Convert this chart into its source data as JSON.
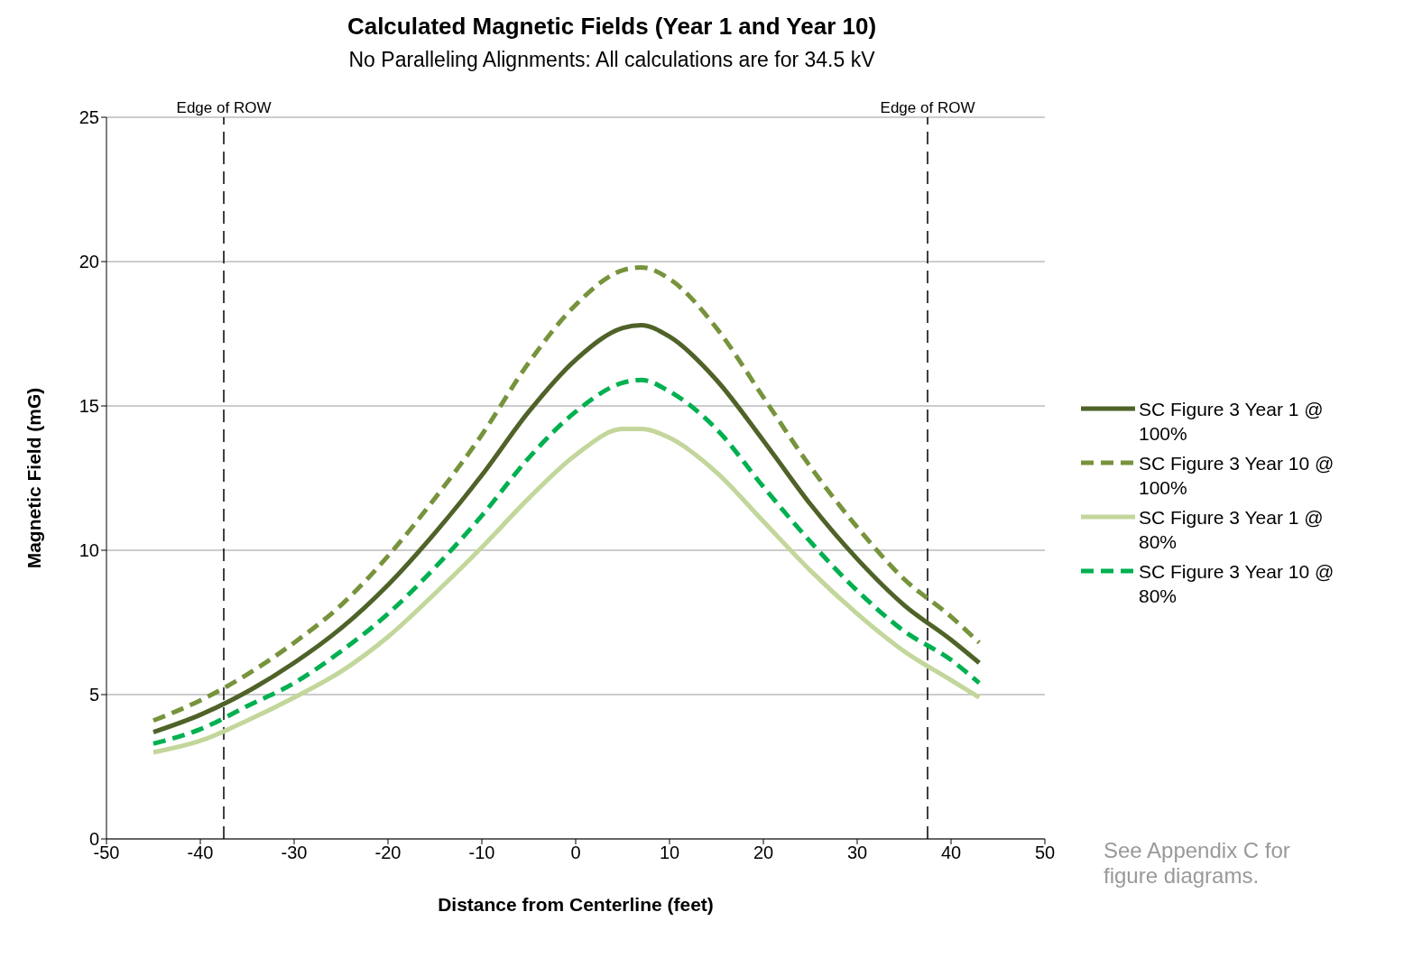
{
  "chart_data": {
    "type": "line",
    "title": "Calculated Magnetic Fields (Year 1 and Year 10)",
    "subtitle": "No Paralleling Alignments: All calculations are for 34.5 kV",
    "xlabel": "Distance from Centerline (feet)",
    "ylabel": "Magnetic Field (mG)",
    "x": [
      -45,
      -40,
      -35,
      -30,
      -25,
      -20,
      -15,
      -10,
      -5,
      0,
      5,
      7,
      10,
      15,
      20,
      25,
      30,
      35,
      40,
      43
    ],
    "series": [
      {
        "name": "SC Figure 3 Year 1 @ 100%",
        "color": "#4f6228",
        "line_style": "solid",
        "values": [
          3.7,
          4.3,
          5.1,
          6.1,
          7.3,
          8.8,
          10.6,
          12.6,
          14.8,
          16.6,
          17.7,
          17.8,
          17.4,
          15.9,
          13.8,
          11.6,
          9.7,
          8.1,
          6.9,
          6.1
        ]
      },
      {
        "name": "SC Figure 3 Year 10 @ 100%",
        "color": "#77933c",
        "line_style": "dashed",
        "values": [
          4.1,
          4.8,
          5.7,
          6.8,
          8.1,
          9.8,
          11.8,
          14.0,
          16.5,
          18.5,
          19.7,
          19.8,
          19.4,
          17.7,
          15.3,
          12.9,
          10.8,
          9.0,
          7.7,
          6.8
        ]
      },
      {
        "name": "SC Figure 3 Year 1 @ 80%",
        "color": "#c3d69b",
        "line_style": "solid",
        "values": [
          3.0,
          3.4,
          4.1,
          4.9,
          5.8,
          7.0,
          8.5,
          10.1,
          11.8,
          13.3,
          14.2,
          14.2,
          13.9,
          12.7,
          11.0,
          9.3,
          7.8,
          6.5,
          5.5,
          4.9
        ]
      },
      {
        "name": "SC Figure 3 Year 10 @ 80%",
        "color": "#00b050",
        "line_style": "dashed",
        "values": [
          3.3,
          3.8,
          4.6,
          5.4,
          6.5,
          7.8,
          9.4,
          11.2,
          13.2,
          14.8,
          15.8,
          15.9,
          15.5,
          14.2,
          12.2,
          10.3,
          8.6,
          7.2,
          6.2,
          5.4
        ]
      }
    ],
    "xlim": [
      -50,
      50
    ],
    "xticks": [
      -50,
      -40,
      -30,
      -20,
      -10,
      0,
      10,
      20,
      30,
      40,
      50
    ],
    "ylim": [
      0,
      25
    ],
    "yticks": [
      0,
      5,
      10,
      15,
      20,
      25
    ],
    "grid": "y",
    "legend": "right",
    "marker": "none",
    "ref_lines": [
      {
        "axis": "x",
        "value": -37.5,
        "label": "Edge of ROW",
        "color": "#000000",
        "line_style": "dashed"
      },
      {
        "axis": "x",
        "value": 37.5,
        "label": "Edge of ROW",
        "color": "#000000",
        "line_style": "dashed"
      }
    ],
    "annotations": [
      "See Appendix C for figure diagrams."
    ]
  }
}
